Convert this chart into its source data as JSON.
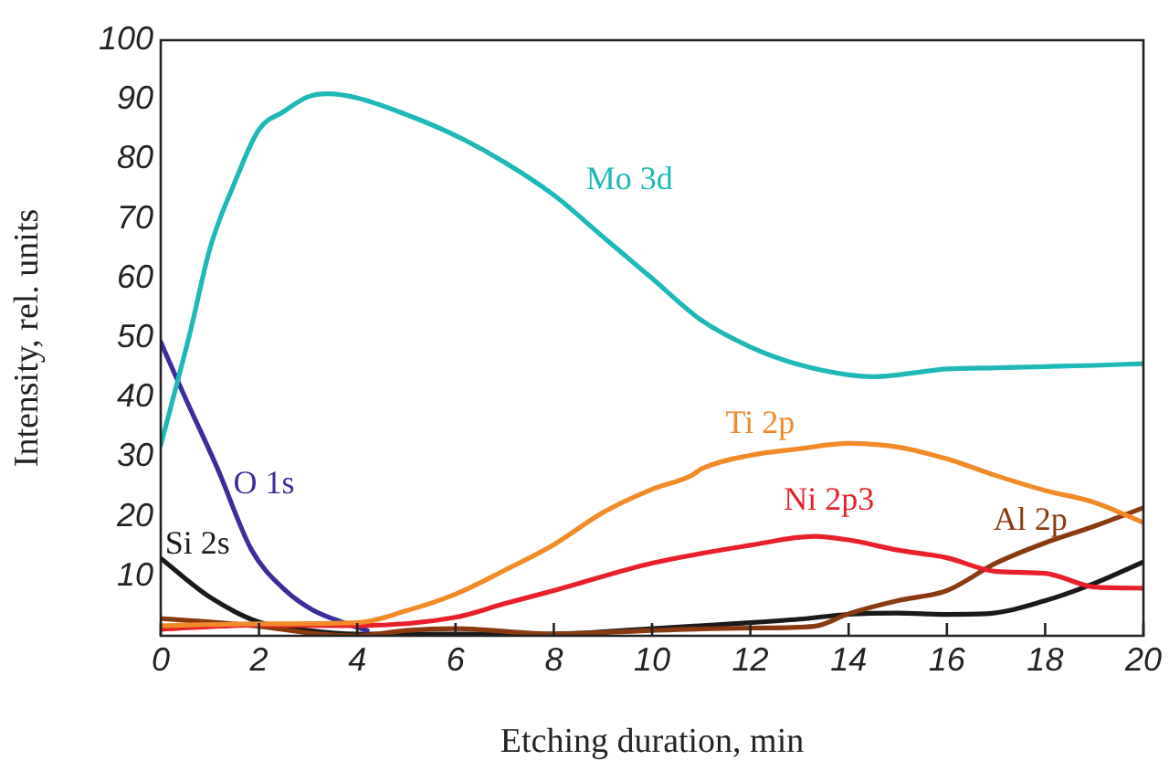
{
  "chart_data": {
    "type": "line",
    "xlabel": "Etching duration, min",
    "ylabel": "Intensity, rel. units",
    "xlim": [
      0,
      20
    ],
    "ylim": [
      0,
      100
    ],
    "xticks": [
      0,
      2,
      4,
      6,
      8,
      10,
      12,
      14,
      16,
      18,
      20
    ],
    "yticks": [
      10,
      20,
      30,
      40,
      50,
      60,
      70,
      80,
      90,
      100
    ],
    "grid": false,
    "legend": false,
    "marker": "none",
    "line_style": "solid",
    "series": [
      {
        "name": "Mo 3d",
        "color": "#1fb8b8",
        "x": [
          0,
          0.6,
          1,
          1.5,
          2,
          2.5,
          3,
          3.4,
          4,
          5,
          6,
          7,
          8,
          9,
          10,
          11,
          12,
          13,
          14,
          14.5,
          15,
          16,
          17,
          18,
          19,
          20
        ],
        "values": [
          32,
          51,
          65,
          76,
          85,
          88,
          90.5,
          91,
          90.3,
          87.5,
          84,
          79.5,
          74,
          67,
          60,
          53,
          48.5,
          45.5,
          43.8,
          43.5,
          43.8,
          44.8,
          45,
          45.2,
          45.4,
          45.7
        ]
      },
      {
        "name": "Ti 2p",
        "color": "#f28a28",
        "x": [
          0,
          2,
          4,
          5,
          6,
          7,
          8,
          9,
          10,
          10.8,
          11,
          12,
          13,
          14,
          15,
          16,
          17,
          18,
          19,
          20
        ],
        "values": [
          1.7,
          2,
          2.2,
          4.2,
          7,
          11,
          15.3,
          20.7,
          24.6,
          26.9,
          28,
          30.3,
          31.4,
          32.3,
          31.7,
          29.7,
          26.9,
          24.4,
          22.4,
          19
        ]
      },
      {
        "name": "Ni 2p3",
        "color": "#e8202a",
        "x": [
          0,
          2,
          4,
          6,
          7,
          8,
          10,
          12,
          13.3,
          14,
          15,
          16,
          17,
          18,
          19,
          20
        ],
        "values": [
          1.1,
          1.8,
          1.7,
          3.1,
          5.4,
          7.6,
          12.2,
          15.2,
          16.7,
          16.1,
          14.4,
          13.1,
          10.8,
          10.5,
          8.2,
          8
        ]
      },
      {
        "name": "Al 2p",
        "color": "#8b3a0f",
        "x": [
          0,
          2,
          3,
          4,
          5,
          6,
          8,
          10,
          12,
          13.3,
          14,
          15,
          16,
          17,
          18,
          19,
          20
        ],
        "values": [
          2.9,
          1.6,
          0.5,
          0,
          0.9,
          1.2,
          0.3,
          0.9,
          1.3,
          1.6,
          3.7,
          5.9,
          7.6,
          12.2,
          15.6,
          18.4,
          21.5
        ]
      },
      {
        "name": "O 1s",
        "color": "#3a2e9a",
        "x": [
          0,
          0.47,
          1.16,
          1.85,
          2.54,
          3.1,
          3.8,
          4.2
        ],
        "values": [
          49.3,
          40.5,
          28,
          14.4,
          7.6,
          4.3,
          2,
          0.9
        ]
      },
      {
        "name": "Si 2s",
        "color": "#1a1a1a",
        "x": [
          0,
          1,
          2,
          3,
          4,
          6,
          8,
          10,
          12,
          13,
          14,
          15,
          16,
          16.8,
          18,
          19,
          20
        ],
        "values": [
          13,
          6.5,
          2.3,
          0.9,
          0.3,
          0.3,
          0.3,
          1.2,
          2.2,
          2.8,
          3.6,
          3.8,
          3.6,
          3.7,
          5.9,
          8.8,
          12.4
        ]
      }
    ]
  }
}
